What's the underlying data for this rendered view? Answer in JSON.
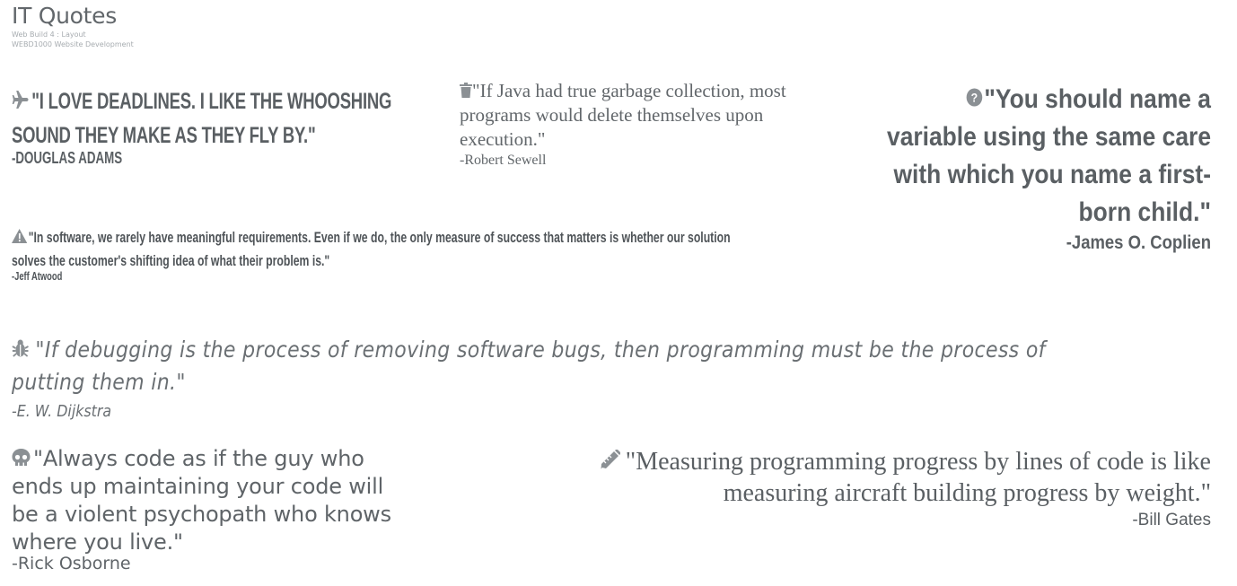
{
  "header": {
    "title": "IT Quotes",
    "subtitle_1": "Web Build 4 : Layout",
    "subtitle_2": "WEBD1000 Website Development"
  },
  "quotes": [
    {
      "icon": "plane-icon",
      "text": "\"I love deadlines. I like the whooshing sound they make as they fly by.\"",
      "author": "-Douglas Adams"
    },
    {
      "icon": "trash-icon",
      "text": "\"If Java had true garbage collection, most programs would delete themselves upon execution.\"",
      "author": "-Robert Sewell"
    },
    {
      "icon": "question-circle-icon",
      "text": "\"You should name a variable using the same care with which you name a first-born child.\"",
      "author": "-James O. Coplien"
    },
    {
      "icon": "warning-icon",
      "text": "\"In software, we rarely have meaningful requirements. Even if we do, the only measure of success that matters is whether our solution solves the customer's shifting idea of what their problem is.\"",
      "author": "-Jeff Atwood"
    },
    {
      "icon": "bug-icon",
      "text": "\"If debugging is the process of removing software bugs, then programming must be the process of putting them in.\"",
      "author": "-E. W. Dijkstra"
    },
    {
      "icon": "skull-icon",
      "text": "\"Always code as if the guy who ends up maintaining your code will be a violent psychopath who knows where you live.\"",
      "author": "-Rick Osborne"
    },
    {
      "icon": "pencil-icon",
      "text": "\"Measuring programming progress by lines of code is like measuring aircraft building progress by weight.\"",
      "author": "-Bill Gates"
    }
  ],
  "colors": {
    "text": "#5a5f63",
    "icon": "#8b9094",
    "subtitle": "#a7acb0"
  }
}
